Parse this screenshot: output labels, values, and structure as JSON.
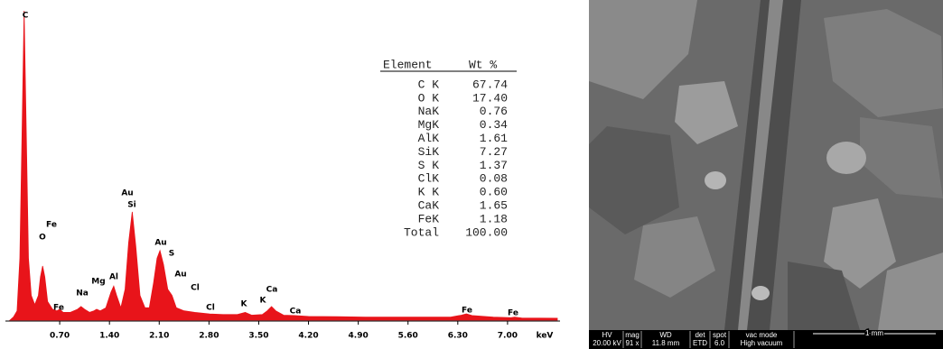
{
  "chart_data": {
    "type": "area",
    "color": "#e8141a",
    "x": [
      0.0,
      0.05,
      0.1,
      0.14,
      0.17,
      0.2,
      0.23,
      0.26,
      0.3,
      0.35,
      0.4,
      0.43,
      0.46,
      0.49,
      0.53,
      0.6,
      0.66,
      0.7,
      0.75,
      0.85,
      0.95,
      1.0,
      1.05,
      1.12,
      1.18,
      1.22,
      1.27,
      1.35,
      1.42,
      1.46,
      1.5,
      1.56,
      1.62,
      1.67,
      1.72,
      1.77,
      1.83,
      1.9,
      1.96,
      2.02,
      2.07,
      2.11,
      2.16,
      2.22,
      2.28,
      2.34,
      2.45,
      2.6,
      2.81,
      3.0,
      3.2,
      3.31,
      3.4,
      3.55,
      3.62,
      3.68,
      3.74,
      3.85,
      4.0,
      4.2,
      4.6,
      5.0,
      5.6,
      6.2,
      6.35,
      6.42,
      6.5,
      6.8,
      7.05,
      7.1,
      7.2,
      7.7
    ],
    "values": [
      0,
      1,
      3,
      20,
      60,
      100,
      60,
      20,
      8,
      5,
      8,
      14,
      17.5,
      14,
      6,
      3.5,
      3,
      3.5,
      2.5,
      2.5,
      3.5,
      4.4,
      3.5,
      2.5,
      3,
      3.5,
      3,
      4,
      9,
      11,
      8,
      4,
      10,
      25,
      35,
      24,
      8,
      4,
      4,
      12,
      20,
      22.5,
      18,
      10,
      8,
      4,
      3,
      2.5,
      2,
      1.8,
      1.8,
      2.5,
      1.6,
      1.8,
      3,
      4.4,
      3,
      1.6,
      1.5,
      1.2,
      1.1,
      1.0,
      1.0,
      1.0,
      1.6,
      2,
      1.5,
      1.0,
      0.8,
      1.0,
      0.7,
      0.6
    ],
    "xlim": [
      0,
      7.7
    ],
    "ylim": [
      0,
      100
    ],
    "xticks": [
      {
        "value": 0.7,
        "label": "0.70"
      },
      {
        "value": 1.4,
        "label": "1.40"
      },
      {
        "value": 2.1,
        "label": "2.10"
      },
      {
        "value": 2.8,
        "label": "2.80"
      },
      {
        "value": 3.5,
        "label": "3.50"
      },
      {
        "value": 4.2,
        "label": "4.20"
      },
      {
        "value": 4.9,
        "label": "4.90"
      },
      {
        "value": 5.6,
        "label": "5.60"
      },
      {
        "value": 6.3,
        "label": "6.30"
      },
      {
        "value": 7.0,
        "label": "7.00"
      }
    ],
    "x_unit": "keV",
    "peak_labels": [
      "C",
      "O",
      "Fe",
      "Fe",
      "Na",
      "Mg",
      "Al",
      "Au",
      "Si",
      "Au",
      "S",
      "Au",
      "Cl",
      "Cl",
      "K",
      "K",
      "Ca",
      "Ca",
      "Fe",
      "Fe"
    ]
  },
  "table": {
    "header": [
      "Element",
      "Wt %"
    ],
    "rows": [
      [
        "C K",
        "67.74"
      ],
      [
        "O K",
        "17.40"
      ],
      [
        "NaK",
        "0.76"
      ],
      [
        "MgK",
        "0.34"
      ],
      [
        "AlK",
        "1.61"
      ],
      [
        "SiK",
        "7.27"
      ],
      [
        "S K",
        "1.37"
      ],
      [
        "ClK",
        "0.08"
      ],
      [
        "K K",
        "0.60"
      ],
      [
        "CaK",
        "1.65"
      ],
      [
        "FeK",
        "1.18"
      ],
      [
        "Total",
        "100.00"
      ]
    ]
  },
  "micrograph": {
    "info_labels": [
      "HV",
      "mag",
      "WD",
      "det",
      "spot",
      "vac mode"
    ],
    "info_values": [
      "20.00 kV",
      "91 x",
      "11.8 mm",
      "ETD",
      "6.0",
      "High vacuum"
    ],
    "scale_bar": "1 mm"
  }
}
